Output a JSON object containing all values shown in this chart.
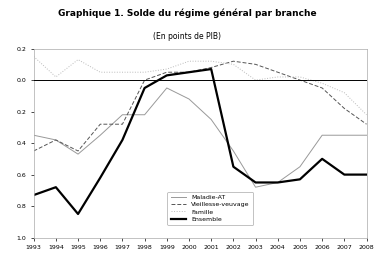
{
  "title": "Graphique 1. Solde du régime général par branche",
  "subtitle": "(En points de PIB)",
  "years": [
    1993,
    1994,
    1995,
    1996,
    1997,
    1998,
    1999,
    2000,
    2001,
    2002,
    2003,
    2004,
    2005,
    2006,
    2007,
    2008
  ],
  "maladie_at": [
    -0.35,
    -0.38,
    -0.47,
    -0.35,
    -0.22,
    -0.22,
    -0.05,
    -0.12,
    -0.25,
    -0.45,
    -0.68,
    -0.65,
    -0.55,
    -0.35,
    -0.35,
    -0.35
  ],
  "vieillesse": [
    -0.45,
    -0.38,
    -0.45,
    -0.28,
    -0.28,
    0.0,
    0.05,
    0.05,
    0.08,
    0.12,
    0.1,
    0.05,
    0.0,
    -0.05,
    -0.18,
    -0.28
  ],
  "famille": [
    0.15,
    0.02,
    0.13,
    0.05,
    0.05,
    0.05,
    0.07,
    0.12,
    0.12,
    0.1,
    0.0,
    0.02,
    0.02,
    -0.02,
    -0.08,
    -0.22
  ],
  "ensemble": [
    -0.73,
    -0.68,
    -0.85,
    -0.62,
    -0.38,
    -0.05,
    0.03,
    0.05,
    0.07,
    -0.55,
    -0.65,
    -0.65,
    -0.63,
    -0.5,
    -0.6,
    -0.6
  ],
  "ylim": [
    -1.0,
    0.2
  ],
  "ytick_vals": [
    -1.0,
    -0.8,
    -0.6,
    -0.4,
    -0.2,
    0.0,
    0.2
  ],
  "ytick_labels": [
    "1.0",
    "0.8",
    "0.6",
    "0.4",
    "0.2",
    "0.0",
    "0.2"
  ],
  "legend_labels": [
    "Maladie-AT",
    "Vieillesse-veuvage",
    "Famille",
    "Ensemble"
  ],
  "background_color": "#ffffff",
  "line_color_maladie": "#999999",
  "line_color_vieillesse": "#555555",
  "line_color_famille": "#bbbbbb",
  "line_color_ensemble": "#000000"
}
